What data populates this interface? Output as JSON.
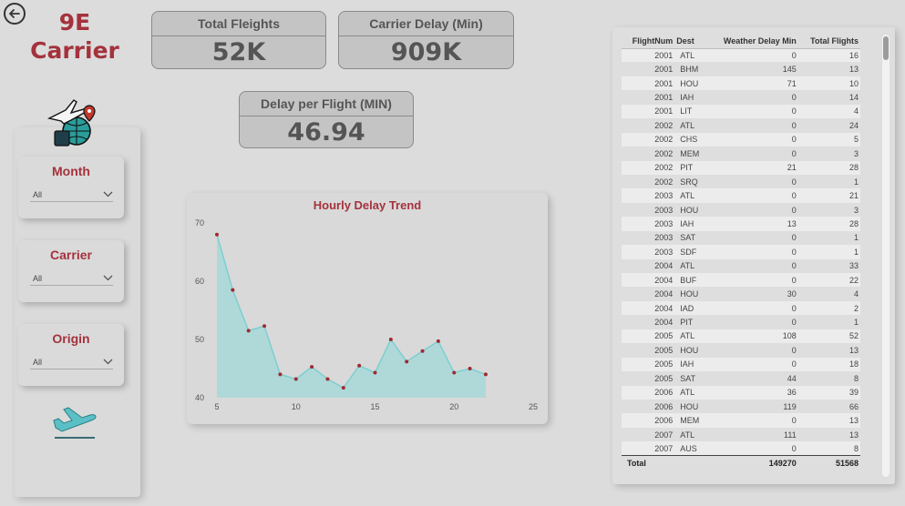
{
  "header": {
    "title_line1": "9E",
    "title_line2": "Carrier"
  },
  "kpis": {
    "total_flights": {
      "label": "Total Fleights",
      "value": "52K"
    },
    "carrier_delay": {
      "label": "Carrier Delay (Min)",
      "value": "909K"
    },
    "delay_per_flight": {
      "label": "Delay per Flight (MIN)",
      "value": "46.94"
    }
  },
  "slicers": {
    "month": {
      "label": "Month",
      "value": "All"
    },
    "carrier": {
      "label": "Carrier",
      "value": "All"
    },
    "origin": {
      "label": "Origin",
      "value": "All"
    }
  },
  "icons": {
    "back": "back-arrow-icon",
    "travel": "travel-globe-icon",
    "plane": "airplane-takeoff-icon",
    "chevron": "chevron-down-icon"
  },
  "colors": {
    "accent": "#a4323c",
    "area_fill": "#a7d8d8",
    "area_line": "#7ccfd0",
    "point": "#9e2a33"
  },
  "chart_data": {
    "type": "area",
    "title": "Hourly Delay Trend",
    "x": [
      5,
      6,
      7,
      8,
      9,
      10,
      11,
      12,
      13,
      14,
      15,
      16,
      17,
      18,
      19,
      20,
      21,
      22
    ],
    "values": [
      68,
      58.5,
      51.5,
      52.3,
      44,
      43.2,
      45.3,
      43.2,
      41.7,
      45.5,
      44.3,
      50,
      46.2,
      48,
      49.7,
      44.3,
      45,
      44
    ],
    "xlim": [
      5,
      25
    ],
    "ylim": [
      40,
      70
    ],
    "xticks": [
      "5",
      "10",
      "15",
      "20",
      "25"
    ],
    "yticks": [
      "40",
      "50",
      "60",
      "70"
    ],
    "grid": false,
    "xlabel": "",
    "ylabel": ""
  },
  "table": {
    "columns": [
      "FlightNum",
      "Dest",
      "Weather Delay Min",
      "Total Flights"
    ],
    "rows": [
      [
        "2001",
        "ATL",
        "0",
        "16"
      ],
      [
        "2001",
        "BHM",
        "145",
        "13"
      ],
      [
        "2001",
        "HOU",
        "71",
        "10"
      ],
      [
        "2001",
        "IAH",
        "0",
        "14"
      ],
      [
        "2001",
        "LIT",
        "0",
        "4"
      ],
      [
        "2002",
        "ATL",
        "0",
        "24"
      ],
      [
        "2002",
        "CHS",
        "0",
        "5"
      ],
      [
        "2002",
        "MEM",
        "0",
        "3"
      ],
      [
        "2002",
        "PIT",
        "21",
        "28"
      ],
      [
        "2002",
        "SRQ",
        "0",
        "1"
      ],
      [
        "2003",
        "ATL",
        "0",
        "21"
      ],
      [
        "2003",
        "HOU",
        "0",
        "3"
      ],
      [
        "2003",
        "IAH",
        "13",
        "28"
      ],
      [
        "2003",
        "SAT",
        "0",
        "1"
      ],
      [
        "2003",
        "SDF",
        "0",
        "1"
      ],
      [
        "2004",
        "ATL",
        "0",
        "33"
      ],
      [
        "2004",
        "BUF",
        "0",
        "22"
      ],
      [
        "2004",
        "HOU",
        "30",
        "4"
      ],
      [
        "2004",
        "IAD",
        "0",
        "2"
      ],
      [
        "2004",
        "PIT",
        "0",
        "1"
      ],
      [
        "2005",
        "ATL",
        "108",
        "52"
      ],
      [
        "2005",
        "HOU",
        "0",
        "13"
      ],
      [
        "2005",
        "IAH",
        "0",
        "18"
      ],
      [
        "2005",
        "SAT",
        "44",
        "8"
      ],
      [
        "2006",
        "ATL",
        "36",
        "39"
      ],
      [
        "2006",
        "HOU",
        "119",
        "66"
      ],
      [
        "2006",
        "MEM",
        "0",
        "13"
      ],
      [
        "2007",
        "ATL",
        "111",
        "13"
      ],
      [
        "2007",
        "AUS",
        "0",
        "8"
      ]
    ],
    "total": {
      "label": "Total",
      "weather": "149270",
      "flights": "51568"
    }
  }
}
